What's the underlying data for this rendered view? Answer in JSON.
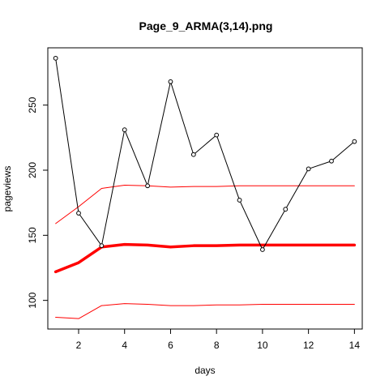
{
  "chart_data": {
    "type": "line",
    "title": "Page_9_ARMA(3,14).png",
    "xlabel": "days",
    "ylabel": "pageviews",
    "xlim": [
      0.66,
      14.34
    ],
    "ylim": [
      78,
      294
    ],
    "x_ticks": [
      2,
      4,
      6,
      8,
      10,
      12,
      14
    ],
    "y_ticks": [
      100,
      150,
      200,
      250
    ],
    "grid": false,
    "legend": "none",
    "colors": {
      "observed": "#000000",
      "forecast": "#ff0000",
      "bounds": "#ff0000"
    },
    "x": [
      1,
      2,
      3,
      4,
      5,
      6,
      7,
      8,
      9,
      10,
      11,
      12,
      13,
      14
    ],
    "series": [
      {
        "key": "observed",
        "style": "line-points",
        "values": [
          286,
          167,
          142,
          231,
          188,
          268,
          212,
          227,
          177,
          139,
          170,
          201,
          207,
          222
        ]
      },
      {
        "key": "forecast",
        "style": "line-thick",
        "values": [
          122,
          129,
          141,
          143,
          142.5,
          141,
          142,
          142,
          142.5,
          142.5,
          142.5,
          142.5,
          142.5,
          142.5
        ]
      },
      {
        "key": "upper",
        "style": "line-thin",
        "values": [
          159,
          172,
          186,
          188.5,
          188,
          187,
          187.5,
          187.5,
          188,
          188,
          188,
          188,
          188,
          188
        ]
      },
      {
        "key": "lower",
        "style": "line-thin",
        "values": [
          87,
          86,
          96,
          97.5,
          97,
          96,
          96,
          96.5,
          96.5,
          97,
          97,
          97,
          97,
          97
        ]
      }
    ]
  }
}
